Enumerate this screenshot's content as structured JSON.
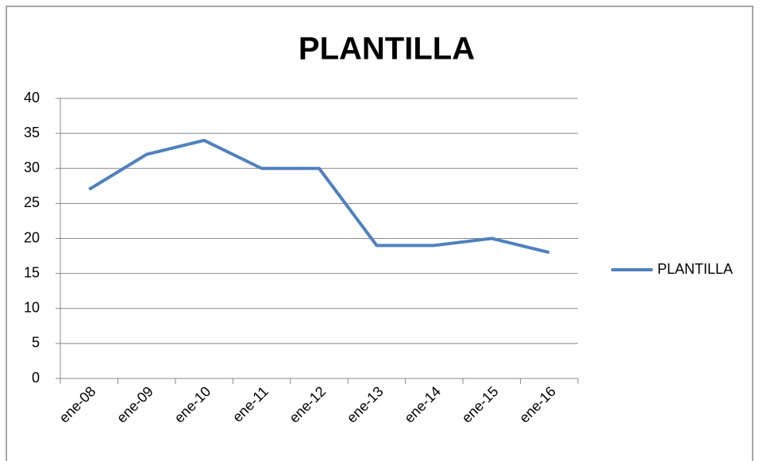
{
  "chart_data": {
    "type": "line",
    "title": "PLANTILLA",
    "categories": [
      "ene-08",
      "ene-09",
      "ene-10",
      "ene-11",
      "ene-12",
      "ene-13",
      "ene-14",
      "ene-15",
      "ene-16"
    ],
    "series": [
      {
        "name": "PLANTILLA",
        "color": "#4f81bd",
        "values": [
          27,
          32,
          34,
          30,
          30,
          19,
          19,
          20,
          18
        ]
      }
    ],
    "ylim": [
      0,
      40
    ],
    "yticks": [
      0,
      5,
      10,
      15,
      20,
      25,
      30,
      35,
      40
    ],
    "grid": true,
    "legend": "right"
  }
}
